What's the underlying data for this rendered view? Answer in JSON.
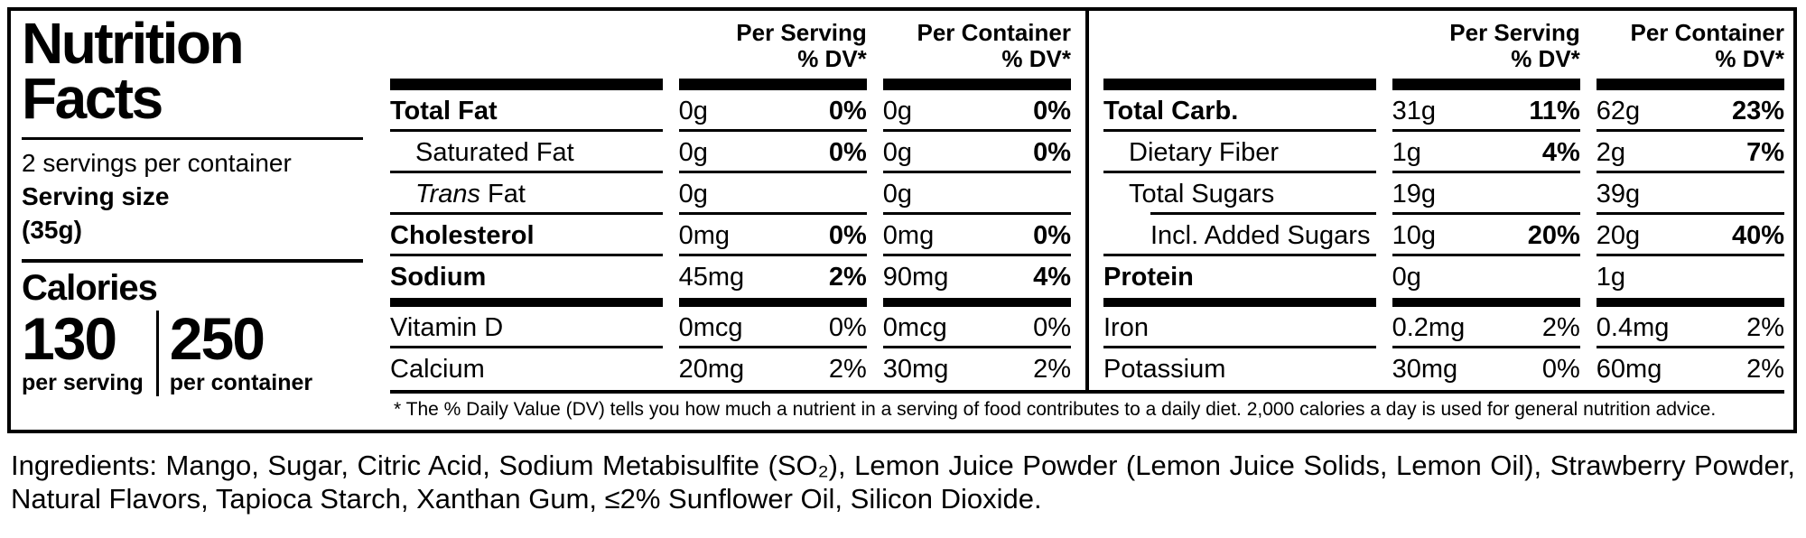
{
  "colors": {
    "text": "#000000",
    "background": "#ffffff"
  },
  "label": {
    "title_line1": "Nutrition",
    "title_line2": "Facts",
    "servings_per_container": "2 servings per container",
    "serving_size_label": "Serving size",
    "serving_size_value": "(35g)",
    "calories_label": "Calories",
    "calories": [
      {
        "value": "130",
        "unit": "per serving"
      },
      {
        "value": "250",
        "unit": "per container"
      }
    ],
    "footnote": "* The % Daily Value (DV) tells you how much a nutrient in a serving of food contributes to a daily diet. 2,000 calories a day is used for general nutrition advice."
  },
  "tables": [
    {
      "columns": [
        {
          "line1": "Per Serving",
          "line2": "% DV*"
        },
        {
          "line1": "Per Container",
          "line2": "% DV*"
        }
      ],
      "rows": [
        {
          "name": "Total Fat",
          "name_bold": true,
          "indent": 0,
          "serving": {
            "amount": "0g",
            "dv": "0%",
            "dv_bold": true
          },
          "container": {
            "amount": "0g",
            "dv": "0%",
            "dv_bold": true
          }
        },
        {
          "name": "Saturated Fat",
          "indent": 1,
          "serving": {
            "amount": "0g",
            "dv": "0%",
            "dv_bold": true
          },
          "container": {
            "amount": "0g",
            "dv": "0%",
            "dv_bold": true
          }
        },
        {
          "name": "Fat",
          "name_italic_prefix": "Trans",
          "indent": 1,
          "serving": {
            "amount": "0g",
            "dv": ""
          },
          "container": {
            "amount": "0g",
            "dv": ""
          }
        },
        {
          "name": "Cholesterol",
          "name_bold": true,
          "indent": 0,
          "serving": {
            "amount": "0mg",
            "dv": "0%",
            "dv_bold": true
          },
          "container": {
            "amount": "0mg",
            "dv": "0%",
            "dv_bold": true
          }
        },
        {
          "name": "Sodium",
          "name_bold": true,
          "indent": 0,
          "last_in_group": true,
          "serving": {
            "amount": "45mg",
            "dv": "2%",
            "dv_bold": true
          },
          "container": {
            "amount": "90mg",
            "dv": "4%",
            "dv_bold": true
          }
        },
        {
          "separator": true
        },
        {
          "name": "Vitamin D",
          "indent": 0,
          "serving": {
            "amount": "0mcg",
            "dv": "0%"
          },
          "container": {
            "amount": "0mcg",
            "dv": "0%"
          }
        },
        {
          "name": "Calcium",
          "indent": 0,
          "last": true,
          "serving": {
            "amount": "20mg",
            "dv": "2%"
          },
          "container": {
            "amount": "30mg",
            "dv": "2%"
          }
        }
      ]
    },
    {
      "columns": [
        {
          "line1": "Per Serving",
          "line2": "% DV*"
        },
        {
          "line1": "Per Container",
          "line2": "% DV*"
        }
      ],
      "rows": [
        {
          "name": "Total Carb.",
          "name_bold": true,
          "indent": 0,
          "serving": {
            "amount": "31g",
            "dv": "11%",
            "dv_bold": true
          },
          "container": {
            "amount": "62g",
            "dv": "23%",
            "dv_bold": true
          }
        },
        {
          "name": "Dietary Fiber",
          "indent": 1,
          "serving": {
            "amount": "1g",
            "dv": "4%",
            "dv_bold": true
          },
          "container": {
            "amount": "2g",
            "dv": "7%",
            "dv_bold": true
          }
        },
        {
          "name": "Total Sugars",
          "indent": 1,
          "rule_below_indent": true,
          "serving": {
            "amount": "19g",
            "dv": ""
          },
          "container": {
            "amount": "39g",
            "dv": ""
          }
        },
        {
          "name": "Incl. Added Sugars",
          "indent": 2,
          "serving": {
            "amount": "10g",
            "dv": "20%",
            "dv_bold": true
          },
          "container": {
            "amount": "20g",
            "dv": "40%",
            "dv_bold": true
          }
        },
        {
          "name": "Protein",
          "name_bold": true,
          "indent": 0,
          "last_in_group": true,
          "serving": {
            "amount": "0g",
            "dv": ""
          },
          "container": {
            "amount": "1g",
            "dv": ""
          }
        },
        {
          "separator": true
        },
        {
          "name": "Iron",
          "indent": 0,
          "serving": {
            "amount": "0.2mg",
            "dv": "2%"
          },
          "container": {
            "amount": "0.4mg",
            "dv": "2%"
          }
        },
        {
          "name": "Potassium",
          "indent": 0,
          "last": true,
          "serving": {
            "amount": "30mg",
            "dv": "0%"
          },
          "container": {
            "amount": "60mg",
            "dv": "2%"
          }
        }
      ]
    }
  ],
  "ingredients": "Ingredients: Mango, Sugar, Citric Acid, Sodium Metabisulfite (SO₂), Lemon Juice Powder (Lemon Juice Solids, Lemon Oil), Strawberry Powder, Natural Flavors, Tapioca Starch, Xanthan Gum, ≤2% Sunflower Oil, Silicon Dioxide."
}
